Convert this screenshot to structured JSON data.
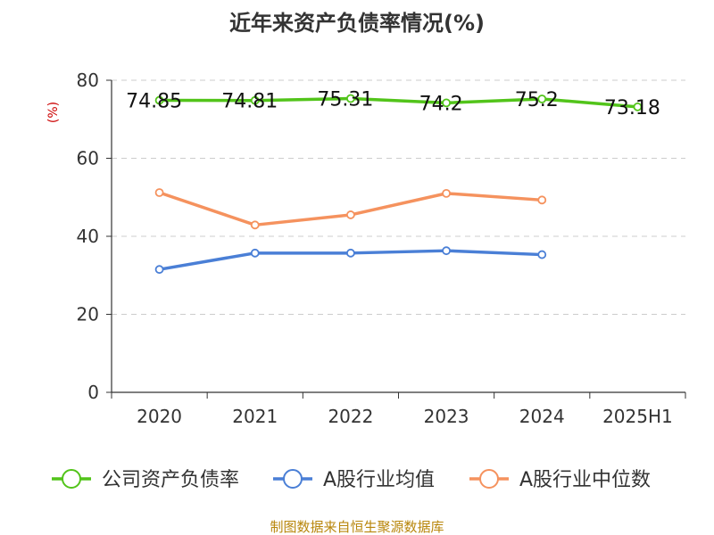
{
  "chart_data": {
    "type": "line",
    "title": "近年来资产负债率情况(%)",
    "ylabel": "(%)",
    "xlabel": "",
    "categories": [
      "2020",
      "2021",
      "2022",
      "2023",
      "2024",
      "2025H1"
    ],
    "ylim": [
      0,
      80
    ],
    "yticks": [
      0,
      20,
      40,
      60,
      80
    ],
    "grid": true,
    "legend_position": "bottom",
    "series": [
      {
        "name": "公司资产负债率",
        "color": "#52c41a",
        "values": [
          74.85,
          74.81,
          75.31,
          74.2,
          75.2,
          73.18
        ],
        "labels": [
          "74.85",
          "74.81",
          "75.31",
          "74.2",
          "75.2",
          "73.18"
        ]
      },
      {
        "name": "A股行业均值",
        "color": "#4a7fd6",
        "values": [
          31.5,
          35.7,
          35.7,
          36.3,
          35.3,
          null
        ]
      },
      {
        "name": "A股行业中位数",
        "color": "#f5925e",
        "values": [
          51.2,
          42.9,
          45.5,
          51.0,
          49.3,
          null
        ]
      }
    ],
    "source": "制图数据来自恒生聚源数据库"
  }
}
